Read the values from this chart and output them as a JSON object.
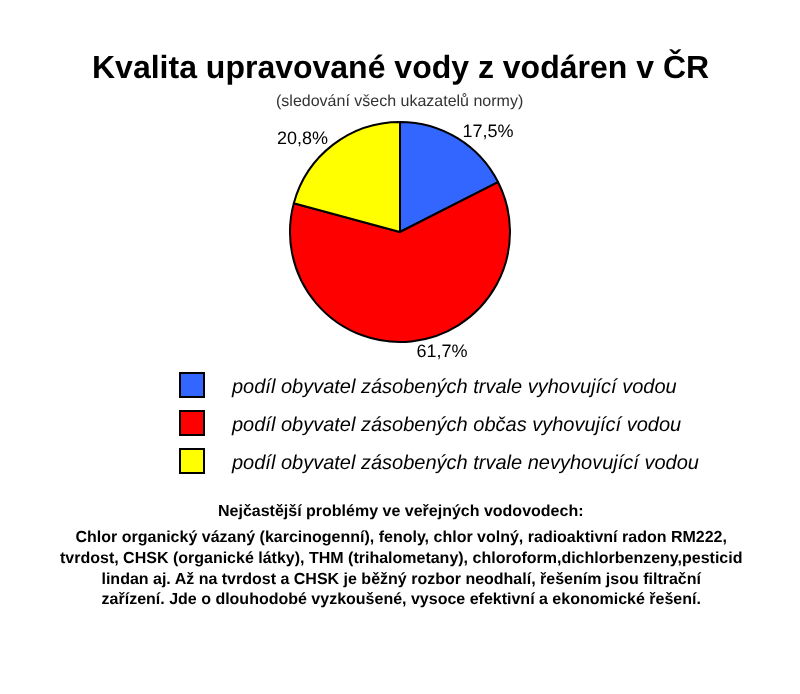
{
  "chart_data": {
    "type": "pie",
    "title": "Kvalita upravované vody z vodáren v ČR",
    "subtitle": "(sledování všech ukazatelů normy)",
    "categories": [
      "podíl obyvatel zásobených trvale vyhovující vodou",
      "podíl obyvatel zásobených občas vyhovující vodou",
      "podíl obyvatel zásobených trvale nevyhovující vodou"
    ],
    "values": [
      17.5,
      61.7,
      20.8
    ],
    "colors": [
      "#3366ff",
      "#ff0000",
      "#ffff00"
    ],
    "value_labels": [
      "17,5%",
      "61,7%",
      "20,8%"
    ],
    "legend": "bottom",
    "annotations": [
      "Nejčastější problémy ve veřejných vodovodech:",
      "Chlor organický vázaný (karcinogenní), fenoly, chlor volný, radioaktivní radon RM222, tvrdost, CHSK (organické látky), THM (trihalometany), chloroform,dichlorbenzeny,pesticid lindan aj. Až na tvrdost a CHSK je běžný rozbor neodhalí, řešením jsou filtrační zařízení. Jde o dlouhodobé vyzkoušené, vysoce efektivní a ekonomické řešení."
    ]
  }
}
